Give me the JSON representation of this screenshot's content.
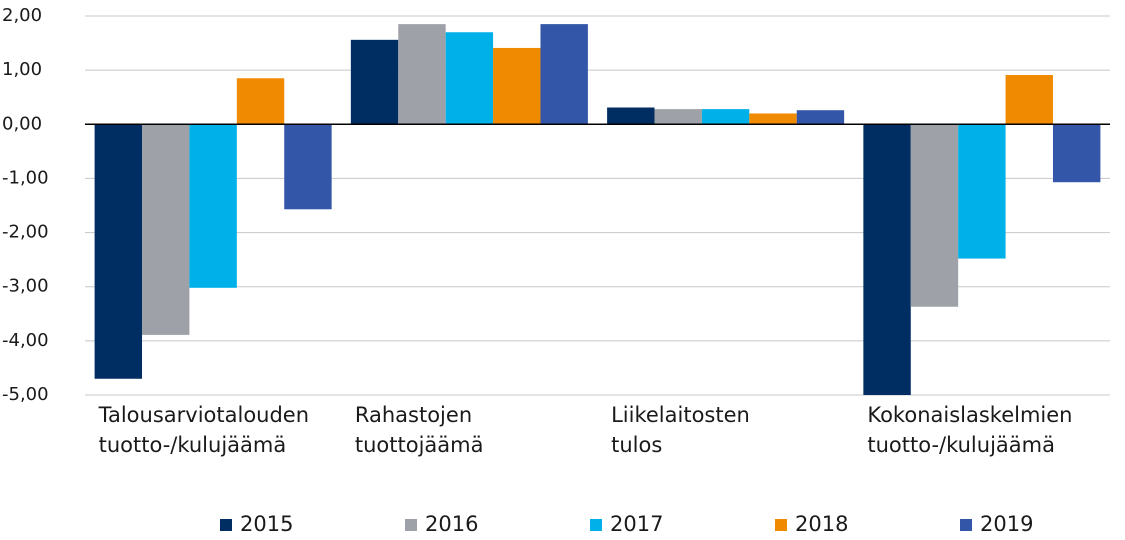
{
  "chart_data": {
    "type": "bar",
    "categories": [
      "Talousarviotalouden\ntuotto-/kulujäämä",
      "Rahastojen\ntuottojäämä",
      "Liikelaitosten\ntulos",
      "Kokonaislaskelmien\ntuotto-/kulujäämä"
    ],
    "series": [
      {
        "name": "2015",
        "color": "#002d62",
        "values": [
          -4.7,
          1.56,
          0.31,
          -5.0
        ]
      },
      {
        "name": "2016",
        "color": "#9ea2a8",
        "values": [
          -3.89,
          1.85,
          0.28,
          -3.37
        ]
      },
      {
        "name": "2017",
        "color": "#00b0e8",
        "values": [
          -3.02,
          1.7,
          0.28,
          -2.48
        ]
      },
      {
        "name": "2018",
        "color": "#f08a00",
        "values": [
          0.85,
          1.41,
          0.2,
          0.91
        ]
      },
      {
        "name": "2019",
        "color": "#3456a8",
        "values": [
          -1.57,
          1.85,
          0.26,
          -1.07
        ]
      }
    ],
    "ylim": [
      -5,
      2
    ],
    "yticks": [
      {
        "value": 2,
        "label": "2,00"
      },
      {
        "value": 1,
        "label": "1,00"
      },
      {
        "value": 0,
        "label": "0,00"
      },
      {
        "value": -1,
        "label": "-1,00"
      },
      {
        "value": -2,
        "label": "-2,00"
      },
      {
        "value": -3,
        "label": "-3,00"
      },
      {
        "value": -4,
        "label": "-4,00"
      },
      {
        "value": -5,
        "label": "-5,00"
      }
    ],
    "grid": true,
    "legend": "bottom"
  }
}
